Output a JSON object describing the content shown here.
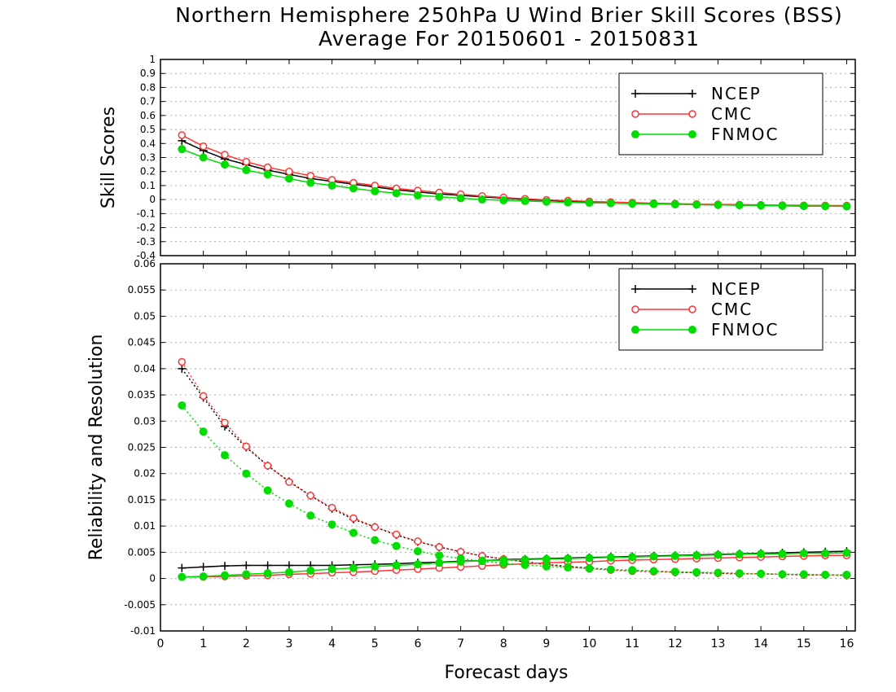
{
  "chart_data": [
    {
      "type": "line",
      "title": "Northern Hemisphere 250hPa U Wind Brier Skill Scores (BSS)",
      "subtitle": "Average For 20150601 - 20150831",
      "xlabel": "",
      "ylabel": "Skill Scores",
      "xlim": [
        0,
        16.2
      ],
      "ylim": [
        -0.4,
        1
      ],
      "yticks": [
        "-0.4",
        "-0.3",
        "-0.2",
        "-0.1",
        "0",
        "0.1",
        "0.2",
        "0.3",
        "0.4",
        "0.5",
        "0.6",
        "0.7",
        "0.8",
        "0.9",
        "1"
      ],
      "grid": true,
      "legend_position": "top-right",
      "x": [
        0.5,
        1,
        1.5,
        2,
        2.5,
        3,
        3.5,
        4,
        4.5,
        5,
        5.5,
        6,
        6.5,
        7,
        7.5,
        8,
        8.5,
        9,
        9.5,
        10,
        10.5,
        11,
        11.5,
        12,
        12.5,
        13,
        13.5,
        14,
        14.5,
        15,
        15.5,
        16
      ],
      "series": [
        {
          "name": "NCEP",
          "color": "#000000",
          "marker": "plus",
          "values": [
            0.42,
            0.35,
            0.29,
            0.25,
            0.21,
            0.18,
            0.15,
            0.13,
            0.11,
            0.09,
            0.07,
            0.055,
            0.04,
            0.03,
            0.02,
            0.01,
            0.0,
            -0.005,
            -0.012,
            -0.018,
            -0.022,
            -0.026,
            -0.03,
            -0.033,
            -0.036,
            -0.038,
            -0.04,
            -0.042,
            -0.044,
            -0.046,
            -0.047,
            -0.048
          ]
        },
        {
          "name": "CMC",
          "color": "#ff3333",
          "marker": "open-circle",
          "values": [
            0.46,
            0.38,
            0.32,
            0.27,
            0.23,
            0.2,
            0.17,
            0.14,
            0.12,
            0.1,
            0.08,
            0.065,
            0.05,
            0.038,
            0.025,
            0.015,
            0.005,
            -0.002,
            -0.008,
            -0.013,
            -0.018,
            -0.022,
            -0.026,
            -0.029,
            -0.032,
            -0.034,
            -0.036,
            -0.038,
            -0.04,
            -0.041,
            -0.042,
            -0.043
          ]
        },
        {
          "name": "FNMOC",
          "color": "#00dd00",
          "marker": "filled-circle",
          "values": [
            0.36,
            0.3,
            0.25,
            0.21,
            0.18,
            0.15,
            0.12,
            0.1,
            0.08,
            0.06,
            0.045,
            0.03,
            0.02,
            0.01,
            0.0,
            -0.005,
            -0.01,
            -0.015,
            -0.02,
            -0.023,
            -0.026,
            -0.029,
            -0.032,
            -0.034,
            -0.036,
            -0.038,
            -0.04,
            -0.042,
            -0.044,
            -0.046,
            -0.047,
            -0.048
          ]
        }
      ]
    },
    {
      "type": "line",
      "xlabel": "Forecast days",
      "ylabel": "Reliability and Resolution",
      "xlim": [
        0,
        16.2
      ],
      "ylim": [
        -0.01,
        0.06
      ],
      "xticks": [
        "0",
        "1",
        "2",
        "3",
        "4",
        "5",
        "6",
        "7",
        "8",
        "9",
        "10",
        "11",
        "12",
        "13",
        "14",
        "15",
        "16"
      ],
      "yticks": [
        "-0.01",
        "-0.005",
        "0",
        "0.005",
        "0.01",
        "0.015",
        "0.02",
        "0.025",
        "0.03",
        "0.035",
        "0.04",
        "0.045",
        "0.05",
        "0.055",
        "0.06"
      ],
      "grid": true,
      "legend_position": "top-right",
      "x": [
        0.5,
        1,
        1.5,
        2,
        2.5,
        3,
        3.5,
        4,
        4.5,
        5,
        5.5,
        6,
        6.5,
        7,
        7.5,
        8,
        8.5,
        9,
        9.5,
        10,
        10.5,
        11,
        11.5,
        12,
        12.5,
        13,
        13.5,
        14,
        14.5,
        15,
        15.5,
        16
      ],
      "series": [
        {
          "name": "NCEP",
          "color": "#000000",
          "marker": "plus",
          "line": "solid",
          "values": [
            0.002,
            0.0022,
            0.0024,
            0.0025,
            0.0025,
            0.0025,
            0.0025,
            0.0025,
            0.0026,
            0.0027,
            0.0028,
            0.003,
            0.0031,
            0.0033,
            0.0034,
            0.0036,
            0.0037,
            0.0038,
            0.0039,
            0.004,
            0.0041,
            0.0042,
            0.0043,
            0.0044,
            0.0045,
            0.0046,
            0.0047,
            0.0048,
            0.0049,
            0.005,
            0.0051,
            0.0052
          ]
        },
        {
          "name": "NCEP",
          "color": "#000000",
          "marker": "plus",
          "line": "dotted",
          "values": [
            0.04,
            0.0345,
            0.029,
            0.025,
            0.0215,
            0.0185,
            0.0158,
            0.0133,
            0.0113,
            0.0098,
            0.0083,
            0.007,
            0.006,
            0.0051,
            0.0043,
            0.0037,
            0.0032,
            0.0027,
            0.0023,
            0.002,
            0.0017,
            0.0015,
            0.0014,
            0.0012,
            0.0011,
            0.001,
            0.0009,
            0.0009,
            0.0008,
            0.0007,
            0.0007,
            0.0006
          ]
        },
        {
          "name": "CMC",
          "color": "#ff3333",
          "marker": "open-circle",
          "line": "solid",
          "values": [
            0.0003,
            0.0003,
            0.0004,
            0.0005,
            0.0006,
            0.0008,
            0.0009,
            0.0011,
            0.0012,
            0.0014,
            0.0016,
            0.0018,
            0.002,
            0.0022,
            0.0024,
            0.0026,
            0.0028,
            0.003,
            0.0031,
            0.0032,
            0.0034,
            0.0035,
            0.0036,
            0.0037,
            0.0038,
            0.0039,
            0.004,
            0.0041,
            0.0042,
            0.0043,
            0.0044,
            0.0044
          ]
        },
        {
          "name": "CMC",
          "color": "#ff3333",
          "marker": "open-circle",
          "line": "dotted",
          "values": [
            0.0413,
            0.0348,
            0.0297,
            0.0252,
            0.0215,
            0.0184,
            0.0158,
            0.0135,
            0.0115,
            0.0098,
            0.0084,
            0.0071,
            0.006,
            0.0051,
            0.0043,
            0.0037,
            0.0031,
            0.0026,
            0.0022,
            0.0019,
            0.0016,
            0.0014,
            0.0013,
            0.0012,
            0.0011,
            0.001,
            0.0009,
            0.0009,
            0.0008,
            0.0007,
            0.0007,
            0.0006
          ]
        },
        {
          "name": "FNMOC",
          "color": "#00dd00",
          "marker": "filled-circle",
          "line": "solid",
          "values": [
            0.0003,
            0.0004,
            0.0006,
            0.0008,
            0.001,
            0.0012,
            0.0015,
            0.0018,
            0.002,
            0.0023,
            0.0025,
            0.0027,
            0.003,
            0.0032,
            0.0034,
            0.0035,
            0.0036,
            0.0037,
            0.0038,
            0.0039,
            0.004,
            0.0041,
            0.0042,
            0.0043,
            0.0044,
            0.0045,
            0.0046,
            0.0047,
            0.0047,
            0.0048,
            0.0048,
            0.0049
          ]
        },
        {
          "name": "FNMOC",
          "color": "#00dd00",
          "marker": "filled-circle",
          "line": "dotted",
          "values": [
            0.033,
            0.028,
            0.0235,
            0.02,
            0.0168,
            0.0143,
            0.012,
            0.0103,
            0.0087,
            0.0073,
            0.0062,
            0.0052,
            0.0044,
            0.0038,
            0.0033,
            0.0029,
            0.0026,
            0.0023,
            0.0021,
            0.0019,
            0.0017,
            0.0016,
            0.0014,
            0.0013,
            0.0012,
            0.0011,
            0.001,
            0.0009,
            0.0008,
            0.0008,
            0.0007,
            0.0007
          ]
        }
      ]
    }
  ]
}
